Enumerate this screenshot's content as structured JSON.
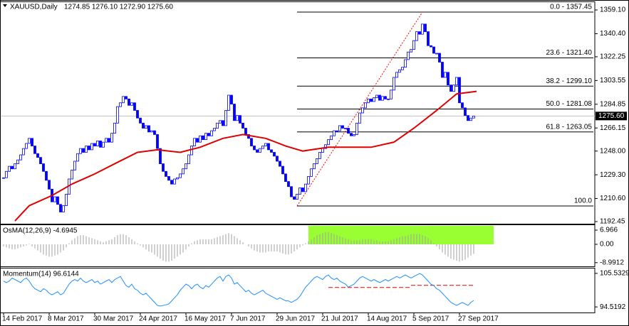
{
  "chart_data": [
    {
      "type": "candlestick",
      "title": "XAUUSD,Daily",
      "ohlc": "1274.85 1276.10 1272.90 1275.60",
      "color": "#0000ff",
      "close": [
        1227,
        1232,
        1236,
        1234,
        1238,
        1241,
        1245,
        1250,
        1254,
        1258,
        1252,
        1246,
        1243,
        1238,
        1232,
        1225,
        1218,
        1208,
        1212,
        1206,
        1200,
        1205,
        1214,
        1226,
        1233,
        1240,
        1246,
        1250,
        1247,
        1252,
        1249,
        1254,
        1252,
        1256,
        1251,
        1255,
        1258,
        1255,
        1262,
        1270,
        1283,
        1286,
        1291,
        1289,
        1284,
        1286,
        1280,
        1274,
        1270,
        1266,
        1268,
        1263,
        1264,
        1261,
        1250,
        1238,
        1232,
        1228,
        1225,
        1222,
        1226,
        1227,
        1230,
        1234,
        1238,
        1245,
        1252,
        1258,
        1255,
        1260,
        1257,
        1262,
        1260,
        1264,
        1266,
        1270,
        1272,
        1268,
        1280,
        1292,
        1285,
        1272,
        1276,
        1270,
        1266,
        1261,
        1258,
        1252,
        1249,
        1247,
        1250,
        1252,
        1254,
        1249,
        1247,
        1244,
        1240,
        1236,
        1230,
        1224,
        1220,
        1212,
        1210,
        1214,
        1219,
        1216,
        1222,
        1228,
        1234,
        1238,
        1242,
        1247,
        1250,
        1253,
        1257,
        1260,
        1264,
        1264,
        1268,
        1266,
        1266,
        1262,
        1260,
        1261,
        1270,
        1278,
        1282,
        1286,
        1289,
        1287,
        1290,
        1292,
        1288,
        1291,
        1289,
        1289,
        1296,
        1306,
        1310,
        1312,
        1314,
        1320,
        1326,
        1328,
        1335,
        1342,
        1340,
        1348,
        1342,
        1331,
        1330,
        1325,
        1325,
        1318,
        1306,
        1310,
        1300,
        1295,
        1300,
        1306,
        1286,
        1282,
        1276,
        1272,
        1274,
        1275.6
      ],
      "ma": {
        "color": "#e00000",
        "x": [
          4,
          9,
          17,
          24,
          32,
          39,
          47,
          54,
          62,
          69,
          77,
          84,
          92,
          99,
          105,
          114,
          122,
          129,
          137,
          144,
          152,
          159,
          166
        ],
        "values": [
          1193,
          1205,
          1213,
          1222,
          1230,
          1238,
          1247,
          1249,
          1247,
          1251,
          1258,
          1261,
          1258,
          1252,
          1248,
          1251,
          1251,
          1251,
          1255,
          1266,
          1280,
          1293,
          1295
        ]
      },
      "fib": [
        {
          "label": "0.0 - 1357.45",
          "value": 1357.45
        },
        {
          "label": "23.6 - 1321.40",
          "value": 1321.4
        },
        {
          "label": "38.2 - 1299.10",
          "value": 1299.1
        },
        {
          "label": "50.0 - 1281.08",
          "value": 1281.08
        },
        {
          "label": "61.8 - 1263.05",
          "value": 1263.05
        },
        {
          "label": "100.0",
          "value": 1204.75
        }
      ],
      "trendline": {
        "x": [
          103,
          147
        ],
        "color": "#ff0000"
      },
      "last_price": {
        "value": 1275.6,
        "label": "1275.60"
      },
      "ylim": [
        1190.77,
        1365.27
      ],
      "yticks": [
        {
          "value": 1359.1,
          "label": "1359.10"
        },
        {
          "value": 1340.4,
          "label": "1340.40"
        },
        1322.25,
        1303.55,
        1284.85,
        1266.15,
        {
          "value": 1248,
          "label": "1248.00"
        },
        {
          "value": 1229.3,
          "label": "1229.30"
        },
        {
          "value": 1210.6,
          "label": "1210.60"
        },
        1192.45
      ]
    },
    {
      "type": "histogram",
      "label": "OsMA(12,26,9) -4.6945",
      "color": "#a0a0a0",
      "highlight": {
        "x": [
          107,
          172
        ],
        "color": "#99ff33"
      },
      "values": [
        -1,
        -1.5,
        -2,
        -2.5,
        -2.5,
        -2,
        -1.5,
        -1,
        -0.5,
        0.2,
        -1,
        -2,
        -3,
        -4,
        -5,
        -5.5,
        -6,
        -6,
        -5.5,
        -5,
        -4,
        -3,
        -1.5,
        0.5,
        2,
        3,
        4,
        4.5,
        4.5,
        4,
        3.5,
        3,
        2.5,
        2,
        1.5,
        1,
        1.5,
        2,
        2.5,
        3.5,
        4.5,
        5,
        5,
        4.5,
        3.5,
        2.5,
        1.5,
        0.5,
        -0.5,
        -1.5,
        -2.5,
        -3.5,
        -4,
        -5,
        -6,
        -7,
        -8,
        -8.5,
        -8.5,
        -8,
        -7,
        -6,
        -5,
        -4,
        -2.5,
        -1,
        0.5,
        1.5,
        2,
        2.5,
        2.5,
        2.5,
        2.5,
        2.5,
        3,
        3.5,
        4,
        4.5,
        5,
        5.5,
        5,
        4,
        3,
        2,
        1,
        0,
        -1,
        -2,
        -3,
        -3.5,
        -4,
        -4,
        -4,
        -3.5,
        -3.5,
        -3.5,
        -3.5,
        -4,
        -4.5,
        -5,
        -5,
        -4.5,
        -3.5,
        -2.5,
        -1.5,
        -0.5,
        0.5,
        1.5,
        2.5,
        3.5,
        4.5,
        5,
        5.5,
        6,
        6,
        5.5,
        5,
        4.5,
        4,
        3.5,
        3,
        2.5,
        2,
        2,
        2,
        2,
        2.5,
        2.5,
        2.5,
        2.5,
        2,
        2,
        1.5,
        1.5,
        1.5,
        1.5,
        2,
        2.5,
        3,
        3.5,
        4,
        4,
        4.5,
        5,
        5,
        5,
        5,
        4.5,
        4,
        3,
        2,
        0.5,
        -1,
        -2.5,
        -4,
        -5,
        -6,
        -7,
        -7.5,
        -8,
        -8.5,
        -8,
        -7.5,
        -6.5,
        -5.5,
        -4.6945
      ],
      "ylim": [
        -10.8,
        9.41
      ],
      "yticks": [
        6.966,
        {
          "value": 0,
          "label": "0.00"
        },
        -8.9912
      ]
    },
    {
      "type": "line",
      "label": "Momentum(14) 96.6144",
      "color": "#1e90ff",
      "values": [
        103,
        102.5,
        103,
        104,
        103.5,
        103,
        102.5,
        103.5,
        104,
        103,
        101.5,
        100.5,
        100,
        99.5,
        100.5,
        100,
        99,
        98.5,
        99,
        99.5,
        98.5,
        99,
        100.5,
        102,
        103,
        103.5,
        103,
        104,
        103,
        102.5,
        103,
        103.5,
        102.5,
        103,
        102,
        102.5,
        103,
        103.5,
        102.5,
        103.5,
        104,
        104.5,
        103,
        101.5,
        101,
        102,
        100.5,
        100,
        99,
        98.5,
        99,
        98,
        97,
        96,
        95,
        94.8,
        95,
        95.2,
        95.5,
        96.5,
        97.5,
        98.5,
        100,
        101,
        102,
        101.5,
        100.5,
        101.5,
        102,
        101,
        100.5,
        101.5,
        101,
        102,
        103,
        104,
        104.5,
        103,
        104.5,
        105,
        104,
        102,
        102.5,
        101.5,
        100.5,
        99.5,
        100,
        99,
        98.5,
        99,
        99.5,
        100,
        99,
        98.5,
        98,
        97.5,
        97,
        97.5,
        97,
        96.5,
        96.5,
        96,
        96.5,
        97,
        98,
        99.5,
        101,
        102,
        103,
        104,
        104.5,
        104,
        103.5,
        104.5,
        105,
        104,
        103.5,
        104,
        103,
        102.5,
        102,
        101,
        101.5,
        102,
        103,
        104,
        104.5,
        104,
        103.5,
        103,
        103.5,
        103,
        102.5,
        103,
        103.5,
        103,
        103.5,
        104,
        104.5,
        104,
        104.5,
        105,
        104.5,
        104,
        104.5,
        105,
        105.5,
        105,
        104,
        103,
        102,
        101.5,
        100.5,
        100,
        99,
        98,
        97,
        96,
        95.5,
        95,
        95.5,
        96,
        95.5,
        95,
        96,
        96.6144
      ],
      "levels": [
        {
          "x": [
            114,
            143
          ],
          "value": 100.9
        },
        {
          "x": [
            143,
            165
          ],
          "value": 101.6
        }
      ],
      "level_color": "#e00000",
      "ylim": [
        92.68,
        107.14
      ],
      "yticks": [
        105.5329,
        94.5192
      ],
      "xticks": [
        {
          "value": 0,
          "label": "14 Feb 2017"
        },
        {
          "value": 16,
          "label": "8 Mar 2017"
        },
        {
          "value": 32,
          "label": "30 Mar 2017"
        },
        {
          "value": 48,
          "label": "24 Apr 2017"
        },
        {
          "value": 64,
          "label": "16 May 2017"
        },
        {
          "value": 80,
          "label": "7 Jun 2017"
        },
        {
          "value": 96,
          "label": "29 Jun 2017"
        },
        {
          "value": 112,
          "label": "21 Jul 2017"
        },
        {
          "value": 128,
          "label": "14 Aug 2017"
        },
        {
          "value": 144,
          "label": "5 Sep 2017"
        },
        {
          "value": 160,
          "label": "27 Sep 2017"
        }
      ]
    }
  ]
}
